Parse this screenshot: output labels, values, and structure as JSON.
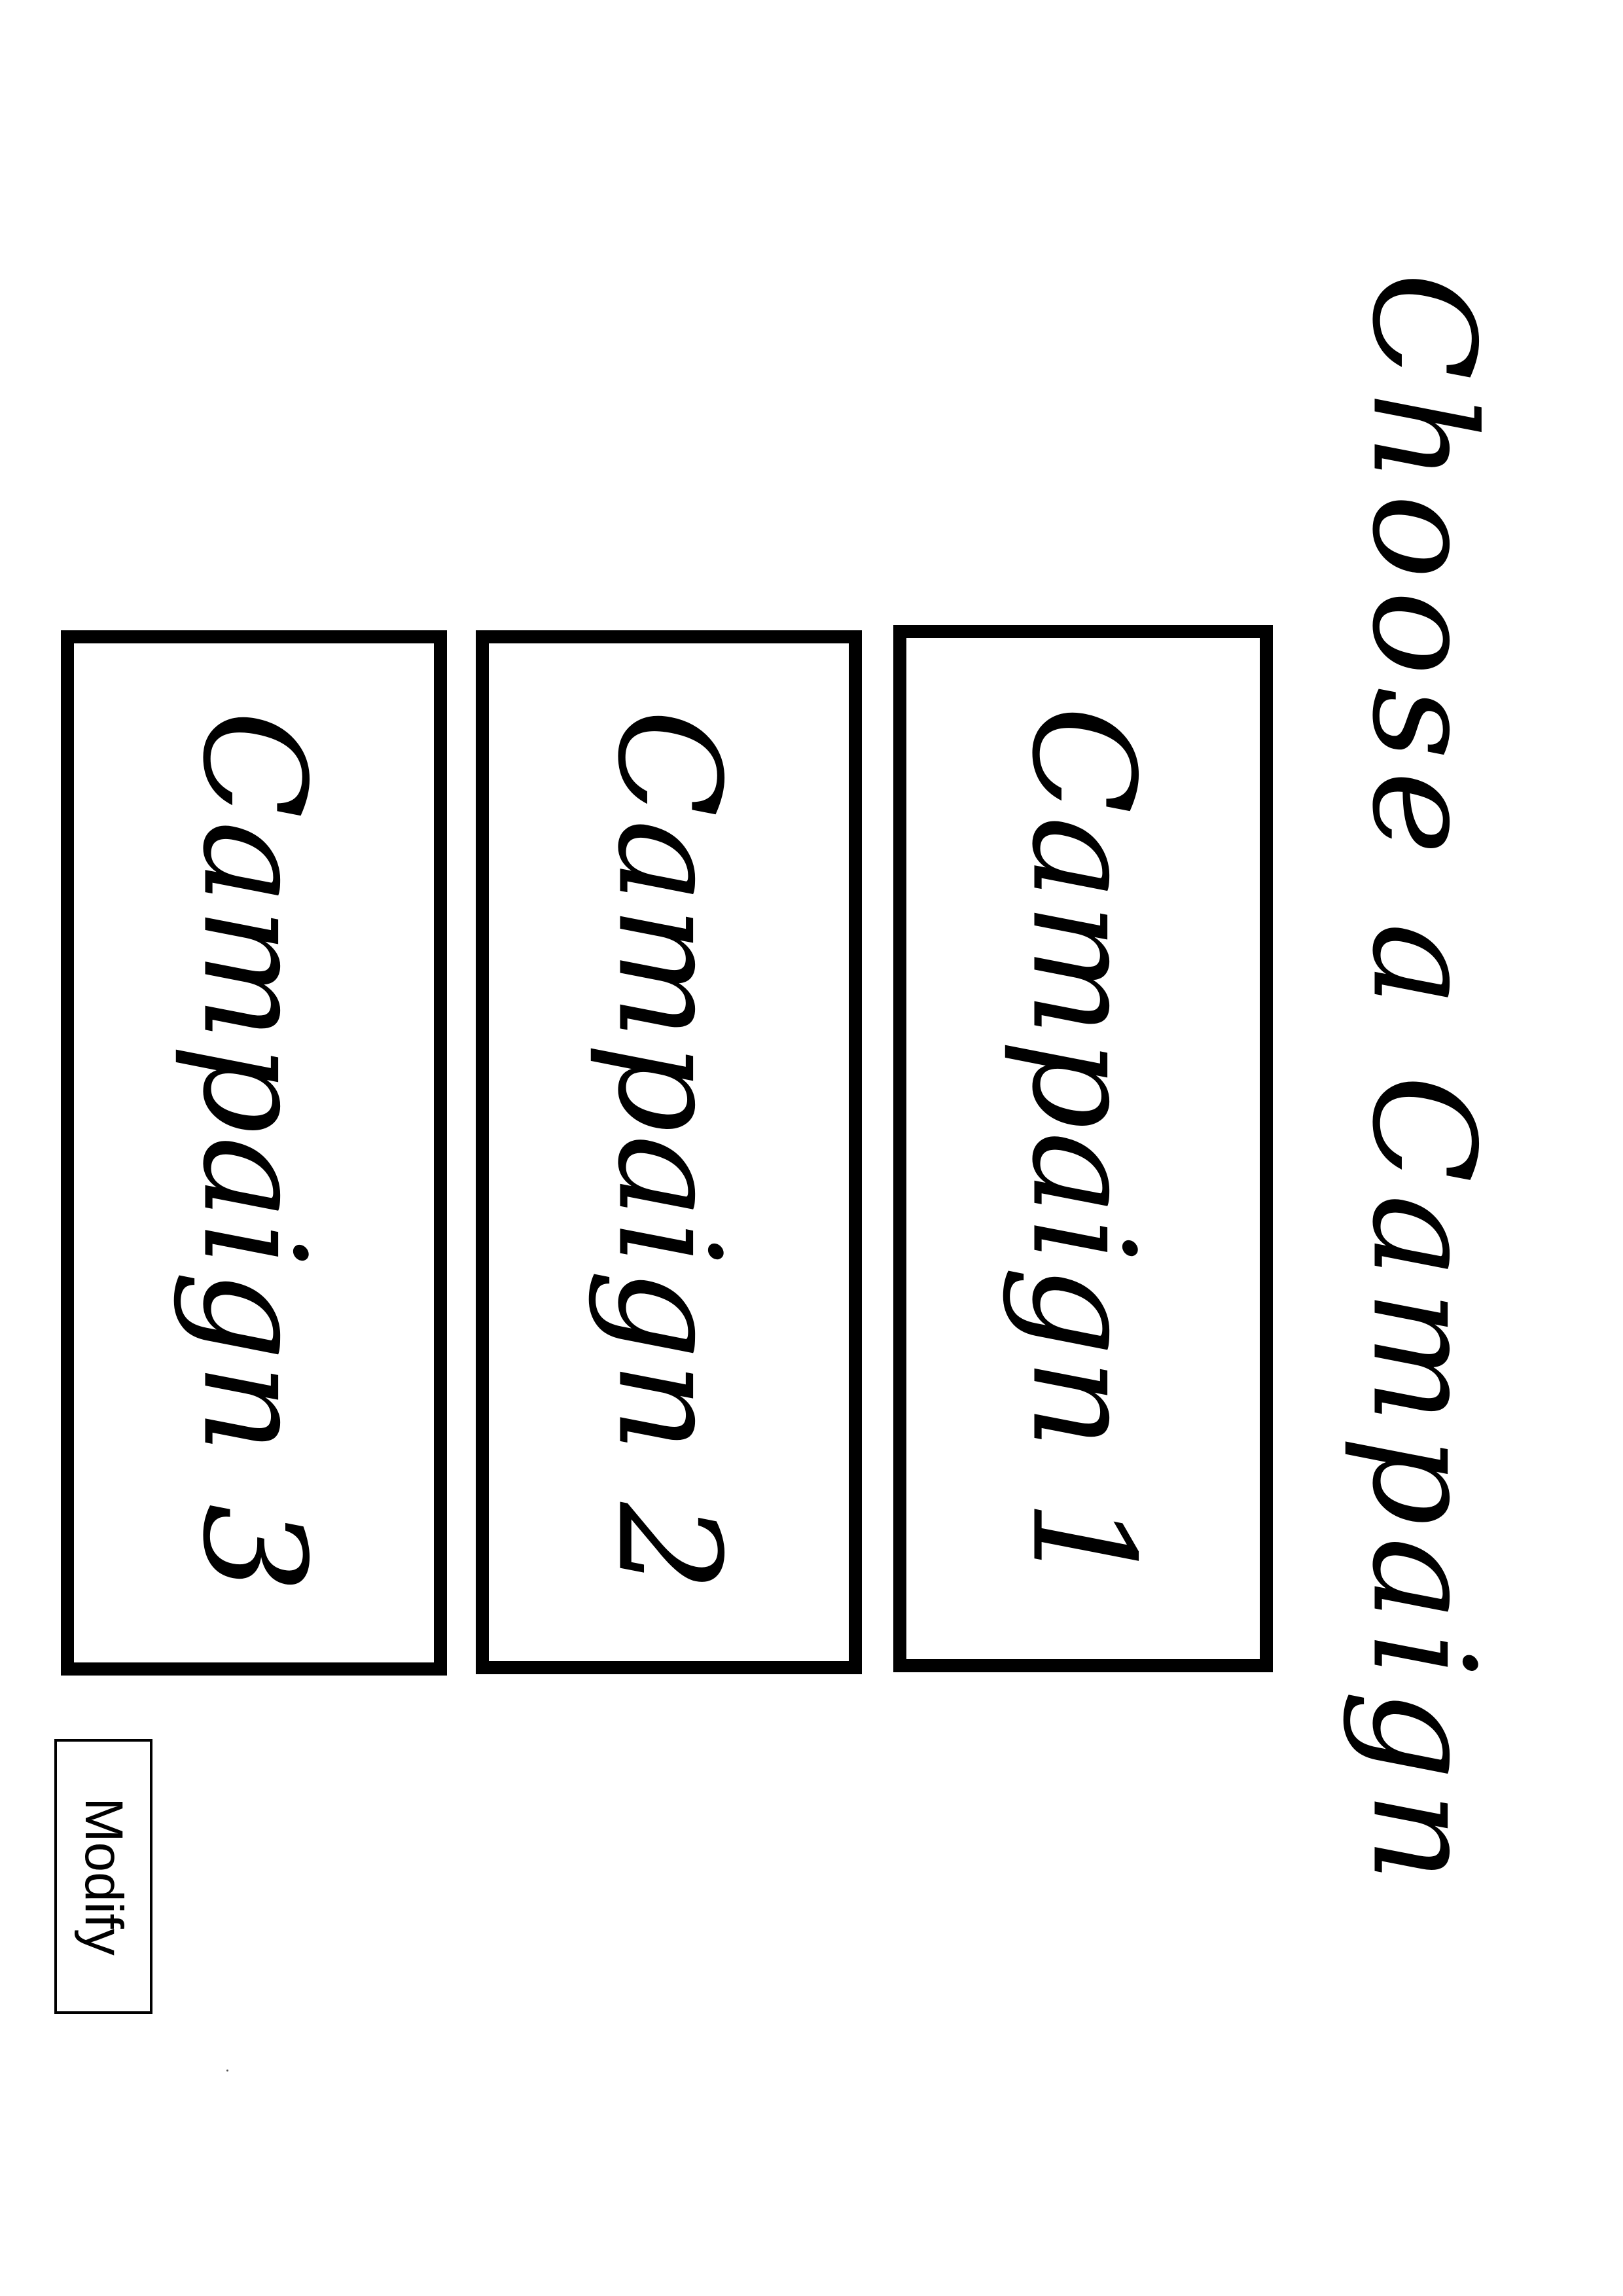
{
  "screen": {
    "title": "Choose a Campaign"
  },
  "campaigns": [
    {
      "label": "Campaign 1"
    },
    {
      "label": "Campaign 2"
    },
    {
      "label": "Campaign 3"
    }
  ],
  "actions": {
    "modify_label": "Modify"
  },
  "colors": {
    "background": "#ffffff",
    "border": "#000000",
    "text": "#000000"
  }
}
